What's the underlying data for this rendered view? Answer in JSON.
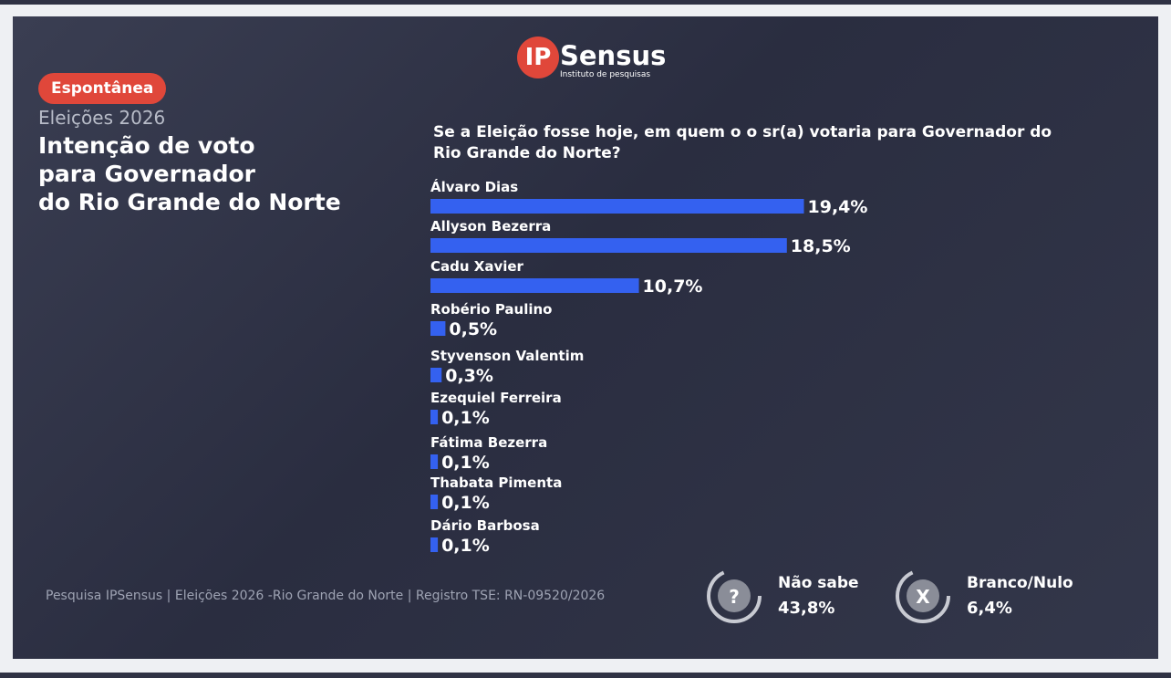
{
  "page": {
    "logo_ip": "IP",
    "logo_name": "Sensus",
    "logo_tagline": "Instituto de pesquisas",
    "badge": "Espontânea",
    "footer": "Pesquisa IPSensus | Eleições 2026 -Rio Grande do Norte | Registro TSE:  RN-09520/2026",
    "summary": [
      {
        "name": "Não sabe",
        "label": "43,8%",
        "icon": "?"
      },
      {
        "name": "Branco/Nulo",
        "label": "6,4%",
        "icon": "X"
      }
    ]
  },
  "chart_data": {
    "type": "bar",
    "subtitle": "Eleições 2026",
    "title": "Intenção de voto\npara Governador\ndo Rio Grande do Norte",
    "question": "Se a Eleição fosse hoje, em quem o o sr(a)  votaria para  Governador do Rio Grande do Norte?",
    "categories": [
      "Álvaro Dias",
      "Allyson Bezerra",
      "Cadu Xavier",
      "Robério Paulino",
      "Styvenson Valentim",
      "Ezequiel Ferreira",
      "Fátima Bezerra",
      "Thabata Pimenta",
      "Dário Barbosa"
    ],
    "values": [
      19.4,
      18.5,
      10.7,
      0.5,
      0.3,
      0.1,
      0.1,
      0.1,
      0.1
    ],
    "value_labels": [
      "19,4%",
      "18,5%",
      "10,7%",
      "0,5%",
      "0,3%",
      "0,1%",
      "0,1%",
      "0,1%",
      "0,1%"
    ],
    "color": "#3461f0"
  }
}
